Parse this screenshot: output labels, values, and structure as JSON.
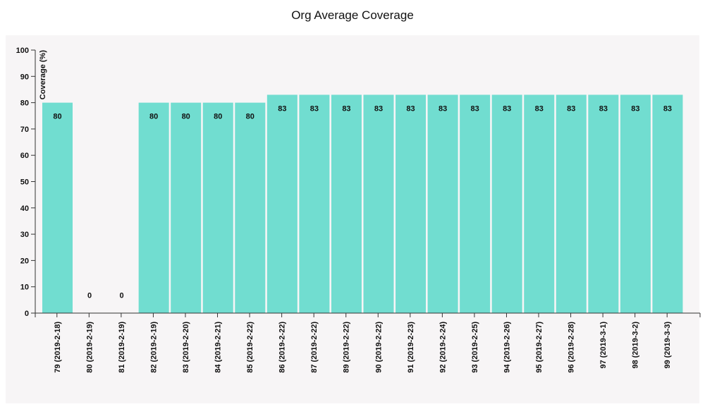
{
  "colors": {
    "panel_background": "#f7f5f6",
    "bar_fill": "#71ddd0",
    "axis": "#333333"
  },
  "chart_data": {
    "type": "bar",
    "title": "Org Average Coverage",
    "xlabel": "",
    "ylabel": "Coverage (%)",
    "ylim": [
      0,
      100
    ],
    "yticks": [
      0,
      10,
      20,
      30,
      40,
      50,
      60,
      70,
      80,
      90,
      100
    ],
    "grid": false,
    "legend": "none",
    "categories": [
      "79 (2019-2-18)",
      "80 (2019-2-19)",
      "81 (2019-2-19)",
      "82 (2019-2-19)",
      "83 (2019-2-20)",
      "84 (2019-2-21)",
      "85 (2019-2-22)",
      "86 (2019-2-22)",
      "87 (2019-2-22)",
      "89 (2019-2-22)",
      "90 (2019-2-22)",
      "91 (2019-2-23)",
      "92 (2019-2-24)",
      "93 (2019-2-25)",
      "94 (2019-2-26)",
      "95 (2019-2-27)",
      "96 (2019-2-28)",
      "97 (2019-3-1)",
      "98 (2019-3-2)",
      "99 (2019-3-3)"
    ],
    "values": [
      80,
      0,
      0,
      80,
      80,
      80,
      80,
      83,
      83,
      83,
      83,
      83,
      83,
      83,
      83,
      83,
      83,
      83,
      83,
      83
    ]
  }
}
